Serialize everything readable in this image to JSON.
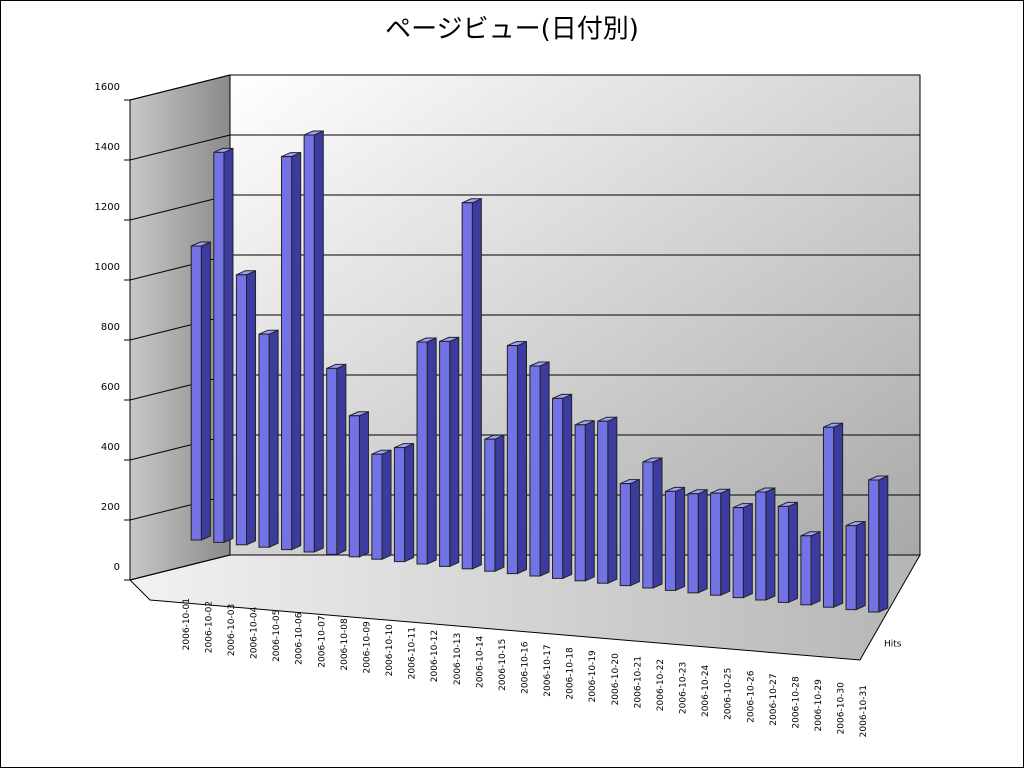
{
  "chart_data": {
    "type": "bar3d",
    "title": "ページビュー(日付別)",
    "categories": [
      "2006-10-01",
      "2006-10-02",
      "2006-10-03",
      "2006-10-04",
      "2006-10-05",
      "2006-10-06",
      "2006-10-07",
      "2006-10-08",
      "2006-10-09",
      "2006-10-10",
      "2006-10-11",
      "2006-10-12",
      "2006-10-13",
      "2006-10-14",
      "2006-10-15",
      "2006-10-16",
      "2006-10-17",
      "2006-10-18",
      "2006-10-19",
      "2006-10-20",
      "2006-10-21",
      "2006-10-22",
      "2006-10-23",
      "2006-10-24",
      "2006-10-25",
      "2006-10-26",
      "2006-10-27",
      "2006-10-28",
      "2006-10-29",
      "2006-10-30",
      "2006-10-31"
    ],
    "series": [
      {
        "name": "Hits",
        "color": "#7373e6",
        "values": [
          980,
          1300,
          900,
          710,
          1310,
          1390,
          620,
          470,
          350,
          380,
          740,
          750,
          1220,
          440,
          760,
          700,
          600,
          520,
          540,
          340,
          420,
          330,
          330,
          340,
          300,
          360,
          320,
          230,
          600,
          280,
          440
        ]
      }
    ],
    "ylim": [
      0,
      1600
    ],
    "yticks": [
      0,
      200,
      400,
      600,
      800,
      1000,
      1200,
      1400,
      1600
    ],
    "grid": true
  }
}
